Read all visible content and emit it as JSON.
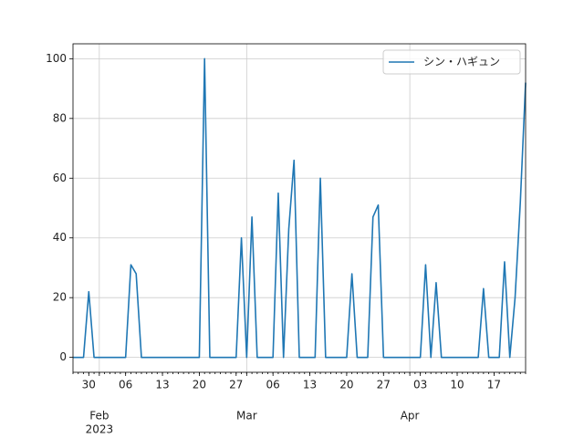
{
  "chart_data": {
    "type": "line",
    "x": [
      "2023-01-27",
      "2023-01-28",
      "2023-01-29",
      "2023-01-30",
      "2023-01-31",
      "2023-02-01",
      "2023-02-02",
      "2023-02-03",
      "2023-02-04",
      "2023-02-05",
      "2023-02-06",
      "2023-02-07",
      "2023-02-08",
      "2023-02-09",
      "2023-02-10",
      "2023-02-11",
      "2023-02-12",
      "2023-02-13",
      "2023-02-14",
      "2023-02-15",
      "2023-02-16",
      "2023-02-17",
      "2023-02-18",
      "2023-02-19",
      "2023-02-20",
      "2023-02-21",
      "2023-02-22",
      "2023-02-23",
      "2023-02-24",
      "2023-02-25",
      "2023-02-26",
      "2023-02-27",
      "2023-02-28",
      "2023-03-01",
      "2023-03-02",
      "2023-03-03",
      "2023-03-04",
      "2023-03-05",
      "2023-03-06",
      "2023-03-07",
      "2023-03-08",
      "2023-03-09",
      "2023-03-10",
      "2023-03-11",
      "2023-03-12",
      "2023-03-13",
      "2023-03-14",
      "2023-03-15",
      "2023-03-16",
      "2023-03-17",
      "2023-03-18",
      "2023-03-19",
      "2023-03-20",
      "2023-03-21",
      "2023-03-22",
      "2023-03-23",
      "2023-03-24",
      "2023-03-25",
      "2023-03-26",
      "2023-03-27",
      "2023-03-28",
      "2023-03-29",
      "2023-03-30",
      "2023-03-31",
      "2023-04-01",
      "2023-04-02",
      "2023-04-03",
      "2023-04-04",
      "2023-04-05",
      "2023-04-06",
      "2023-04-07",
      "2023-04-08",
      "2023-04-09",
      "2023-04-10",
      "2023-04-11",
      "2023-04-12",
      "2023-04-13",
      "2023-04-14",
      "2023-04-15",
      "2023-04-16",
      "2023-04-17",
      "2023-04-18",
      "2023-04-19",
      "2023-04-20",
      "2023-04-21",
      "2023-04-22",
      "2023-04-23"
    ],
    "series": [
      {
        "name": "シン・ハギュン",
        "color": "#1f77b4",
        "values": [
          0,
          0,
          0,
          22,
          0,
          0,
          0,
          0,
          0,
          0,
          0,
          31,
          28,
          0,
          0,
          0,
          0,
          0,
          0,
          0,
          0,
          0,
          0,
          0,
          0,
          100,
          0,
          0,
          0,
          0,
          0,
          0,
          40,
          0,
          47,
          0,
          0,
          0,
          0,
          55,
          0,
          43,
          66,
          0,
          0,
          0,
          0,
          60,
          0,
          0,
          0,
          0,
          0,
          28,
          0,
          0,
          0,
          47,
          51,
          0,
          0,
          0,
          0,
          0,
          0,
          0,
          0,
          31,
          0,
          25,
          0,
          0,
          0,
          0,
          0,
          0,
          0,
          0,
          23,
          0,
          0,
          0,
          32,
          0,
          20,
          52,
          92
        ]
      }
    ],
    "xlim": [
      "2023-01-27",
      "2023-04-23"
    ],
    "xticks": [
      {
        "value": "2023-01-30",
        "label": "30"
      },
      {
        "value": "2023-02-06",
        "label": "06"
      },
      {
        "value": "2023-02-13",
        "label": "13"
      },
      {
        "value": "2023-02-20",
        "label": "20"
      },
      {
        "value": "2023-02-27",
        "label": "27"
      },
      {
        "value": "2023-03-06",
        "label": "06"
      },
      {
        "value": "2023-03-13",
        "label": "13"
      },
      {
        "value": "2023-03-20",
        "label": "20"
      },
      {
        "value": "2023-03-27",
        "label": "27"
      },
      {
        "value": "2023-04-03",
        "label": "03"
      },
      {
        "value": "2023-04-10",
        "label": "10"
      },
      {
        "value": "2023-04-17",
        "label": "17"
      }
    ],
    "x_major_ticks": [
      {
        "value": "2023-02-01",
        "label": "Feb"
      },
      {
        "value": "2023-03-01",
        "label": "Mar"
      },
      {
        "value": "2023-04-01",
        "label": "Apr"
      }
    ],
    "year_label": "2023",
    "ylim": [
      -5,
      105
    ],
    "yticks": [
      0,
      20,
      40,
      60,
      80,
      100
    ],
    "grid": true,
    "legend": "upper right"
  }
}
